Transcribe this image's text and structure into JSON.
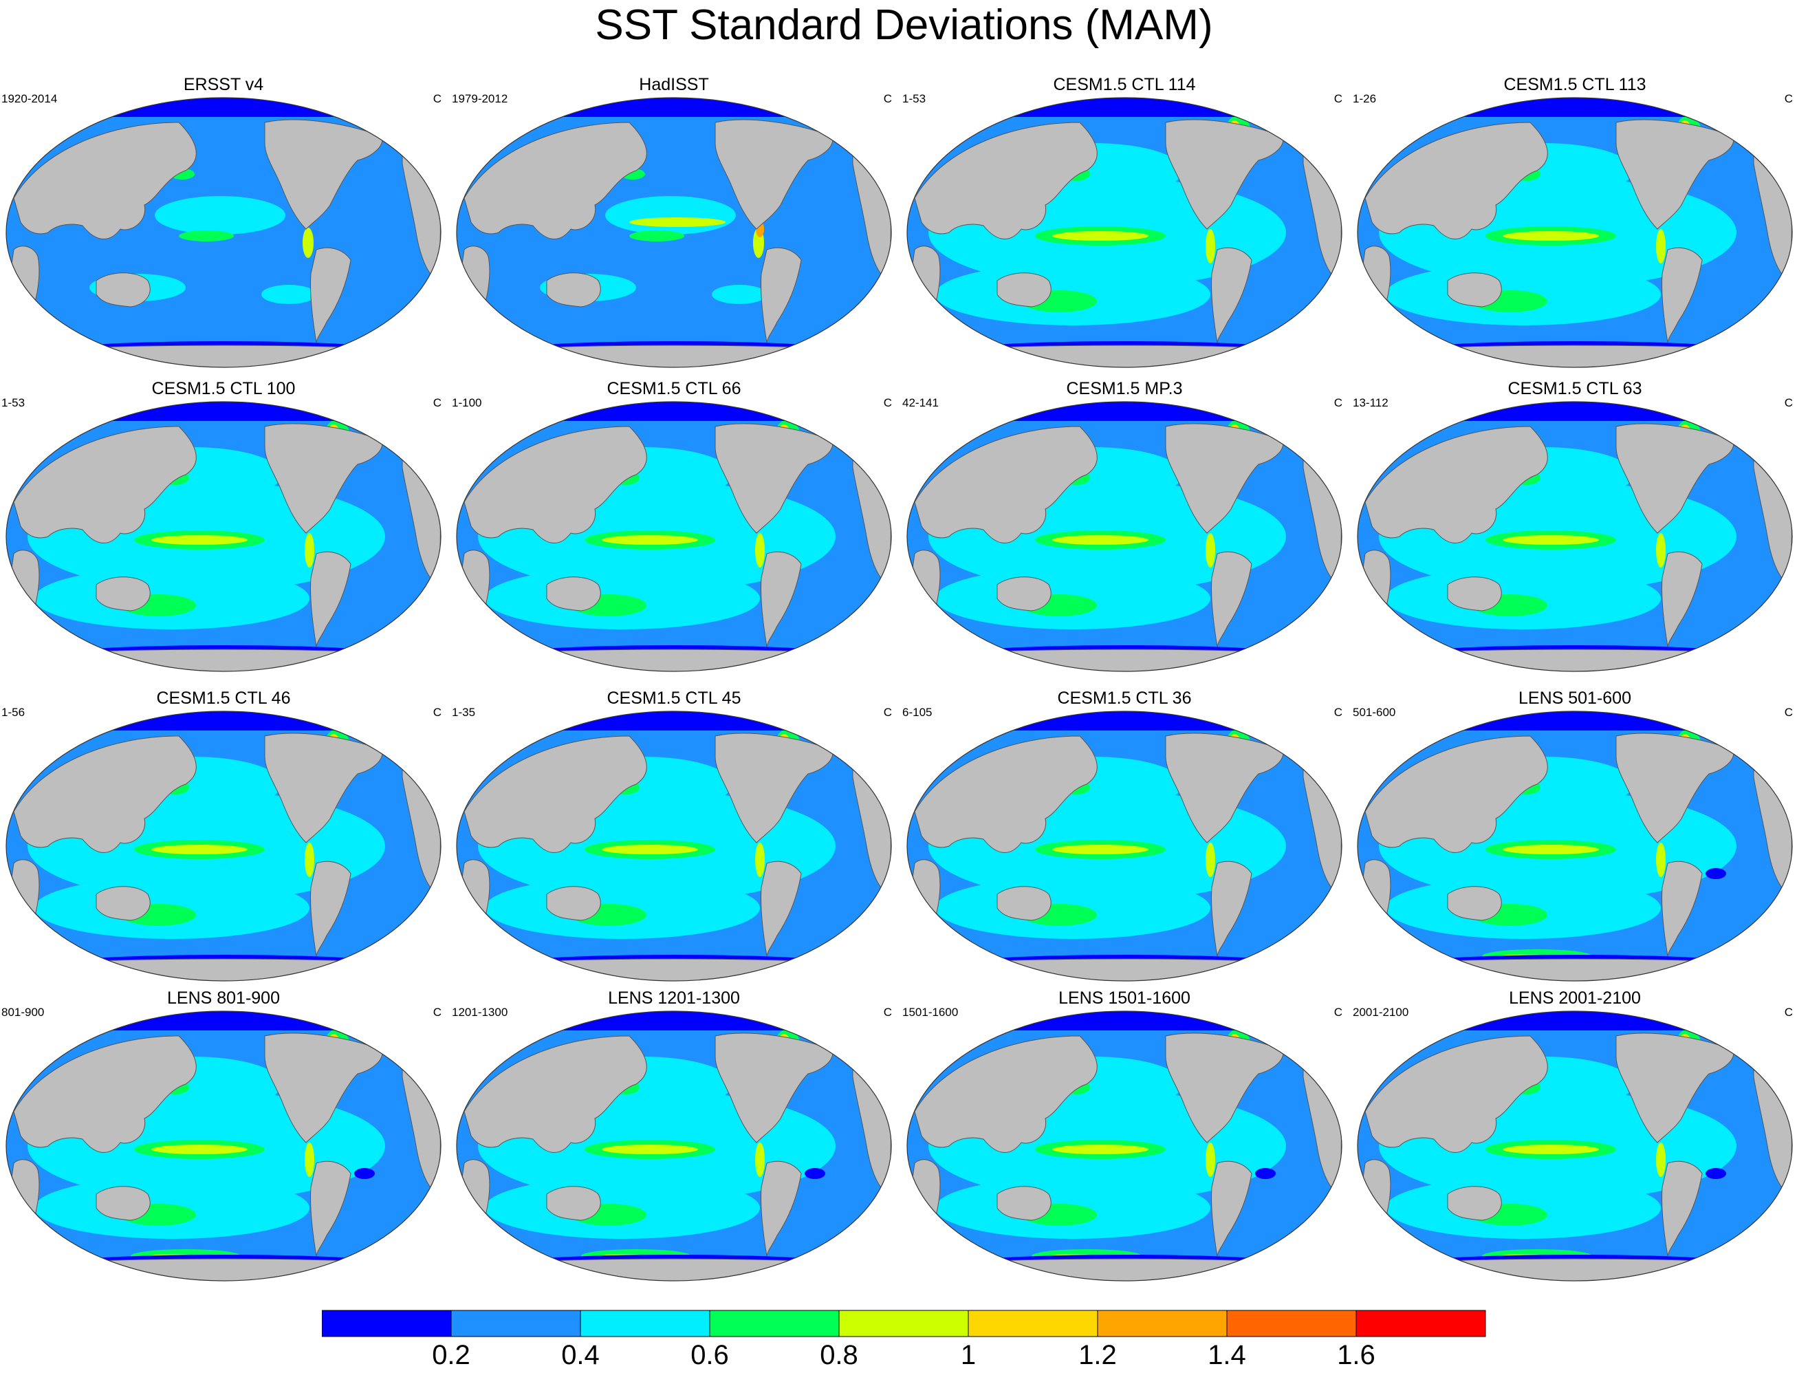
{
  "figure": {
    "title": "SST Standard Deviations (MAM)"
  },
  "panels": [
    {
      "title": "ERSST v4",
      "left": "1920-2014",
      "right": "C",
      "variant": "ersst"
    },
    {
      "title": "HadISST",
      "left": "1979-2012",
      "right": "C",
      "variant": "hadisst"
    },
    {
      "title": "CESM1.5 CTL 114",
      "left": "1-53",
      "right": "C",
      "variant": "model"
    },
    {
      "title": "CESM1.5 CTL 113",
      "left": "1-26",
      "right": "C",
      "variant": "model"
    },
    {
      "title": "CESM1.5 CTL 100",
      "left": "1-53",
      "right": "C",
      "variant": "model"
    },
    {
      "title": "CESM1.5 CTL 66",
      "left": "1-100",
      "right": "C",
      "variant": "model"
    },
    {
      "title": "CESM1.5 MP.3",
      "left": "42-141",
      "right": "C",
      "variant": "model"
    },
    {
      "title": "CESM1.5 CTL 63",
      "left": "13-112",
      "right": "C",
      "variant": "model"
    },
    {
      "title": "CESM1.5 CTL 46",
      "left": "1-56",
      "right": "C",
      "variant": "model"
    },
    {
      "title": "CESM1.5 CTL 45",
      "left": "1-35",
      "right": "C",
      "variant": "model"
    },
    {
      "title": "CESM1.5 CTL 36",
      "left": "6-105",
      "right": "C",
      "variant": "model"
    },
    {
      "title": "LENS 501-600",
      "left": "501-600",
      "right": "C",
      "variant": "lens"
    },
    {
      "title": "LENS 801-900",
      "left": "801-900",
      "right": "C",
      "variant": "lens"
    },
    {
      "title": "LENS 1201-1300",
      "left": "1201-1300",
      "right": "C",
      "variant": "lens"
    },
    {
      "title": "LENS 1501-1600",
      "left": "1501-1600",
      "right": "C",
      "variant": "lens"
    },
    {
      "title": "LENS 2001-2100",
      "left": "2001-2100",
      "right": "C",
      "variant": "lens"
    }
  ],
  "colorbar": {
    "colors": [
      "#0000ff",
      "#1e90ff",
      "#00eeff",
      "#00ff55",
      "#ccff00",
      "#ffd700",
      "#ffa500",
      "#ff6600",
      "#ff0000"
    ],
    "labels": [
      "0.2",
      "0.4",
      "0.6",
      "0.8",
      "1",
      "1.2",
      "1.4",
      "1.6"
    ]
  },
  "colors": {
    "land": "#bebebe",
    "arctic": "#0000ff",
    "background": "#ffffff"
  }
}
